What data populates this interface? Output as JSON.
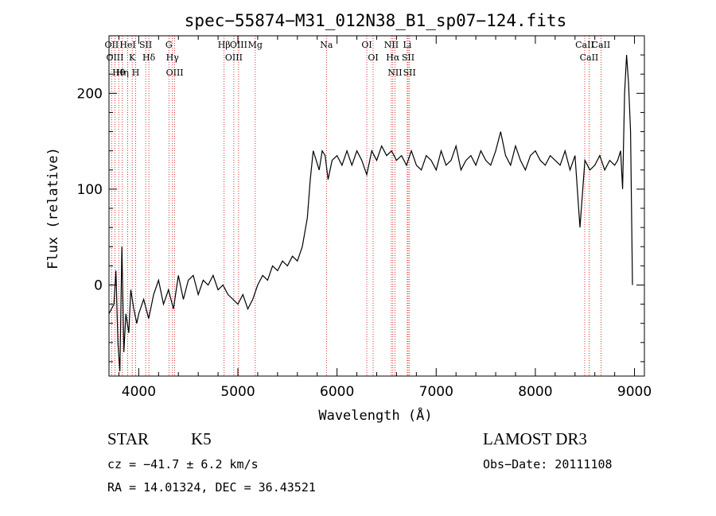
{
  "chart_data": {
    "type": "line",
    "title": "spec−55874−M31_012N38_B1_sp07−124.fits",
    "xlabel": "Wavelength (Å)",
    "ylabel": "Flux (relative)",
    "xlim": [
      3700,
      9100
    ],
    "ylim": [
      -95,
      260
    ],
    "x_ticks": [
      4000,
      5000,
      6000,
      7000,
      8000,
      9000
    ],
    "x_tick_labels": [
      "4000",
      "5000",
      "6000",
      "7000",
      "8000",
      "9000"
    ],
    "y_ticks": [
      0,
      100,
      200
    ],
    "y_tick_labels": [
      "0",
      "100",
      "200"
    ],
    "series": [
      {
        "name": "spectrum",
        "color": "#000000",
        "x": [
          3700,
          3750,
          3770,
          3790,
          3810,
          3830,
          3850,
          3870,
          3900,
          3920,
          3950,
          3980,
          4000,
          4050,
          4100,
          4150,
          4200,
          4250,
          4300,
          4350,
          4400,
          4450,
          4500,
          4550,
          4600,
          4650,
          4700,
          4750,
          4800,
          4850,
          4900,
          4950,
          5000,
          5050,
          5100,
          5150,
          5200,
          5250,
          5300,
          5350,
          5400,
          5450,
          5500,
          5550,
          5600,
          5650,
          5700,
          5730,
          5760,
          5790,
          5820,
          5850,
          5880,
          5910,
          5950,
          6000,
          6050,
          6100,
          6150,
          6200,
          6250,
          6300,
          6350,
          6400,
          6450,
          6500,
          6550,
          6600,
          6650,
          6700,
          6750,
          6800,
          6850,
          6900,
          6950,
          7000,
          7050,
          7100,
          7150,
          7200,
          7250,
          7300,
          7350,
          7400,
          7450,
          7500,
          7550,
          7600,
          7650,
          7700,
          7750,
          7800,
          7850,
          7900,
          7950,
          8000,
          8050,
          8100,
          8150,
          8200,
          8250,
          8300,
          8350,
          8400,
          8450,
          8500,
          8550,
          8600,
          8650,
          8700,
          8750,
          8800,
          8830,
          8860,
          8880,
          8900,
          8920,
          8940,
          8960,
          8980
        ],
        "y": [
          -30,
          -20,
          15,
          -60,
          -90,
          40,
          -70,
          -30,
          -50,
          -5,
          -25,
          -40,
          -30,
          -15,
          -35,
          -10,
          5,
          -20,
          -5,
          -25,
          10,
          -15,
          5,
          10,
          -10,
          5,
          0,
          10,
          -5,
          0,
          -10,
          -15,
          -20,
          -10,
          -25,
          -15,
          0,
          10,
          5,
          20,
          15,
          25,
          20,
          30,
          25,
          40,
          70,
          110,
          140,
          130,
          120,
          140,
          135,
          110,
          130,
          135,
          125,
          140,
          125,
          140,
          130,
          115,
          140,
          130,
          145,
          135,
          140,
          130,
          135,
          125,
          140,
          125,
          120,
          135,
          130,
          120,
          140,
          125,
          130,
          145,
          120,
          130,
          135,
          125,
          140,
          130,
          125,
          140,
          160,
          135,
          125,
          145,
          130,
          120,
          135,
          140,
          130,
          125,
          135,
          130,
          125,
          140,
          120,
          135,
          60,
          130,
          120,
          125,
          135,
          120,
          130,
          125,
          130,
          140,
          100,
          200,
          240,
          210,
          160,
          0
        ]
      }
    ],
    "lines": [
      {
        "label": "Hθ",
        "x": 3798
      },
      {
        "label": "OII",
        "x": 3727
      },
      {
        "label": "OIII",
        "x": 3760
      },
      {
        "label": "K",
        "x": 3934
      },
      {
        "label": "H",
        "x": 3969
      },
      {
        "label": "HeI",
        "x": 3889
      },
      {
        "label": "Hη",
        "x": 3835
      },
      {
        "label": "Hδ",
        "x": 4102
      },
      {
        "label": "SII",
        "x": 4070
      },
      {
        "label": "OIII",
        "x": 4363
      },
      {
        "label": "Hγ",
        "x": 4340
      },
      {
        "label": "G",
        "x": 4304
      },
      {
        "label": "Hβ",
        "x": 4861
      },
      {
        "label": "OIII",
        "x": 4959
      },
      {
        "label": "OIII",
        "x": 5007
      },
      {
        "label": "Mg",
        "x": 5175
      },
      {
        "label": "Na",
        "x": 5893
      },
      {
        "label": "OI",
        "x": 6300
      },
      {
        "label": "OI",
        "x": 6364
      },
      {
        "label": "Hα",
        "x": 6563
      },
      {
        "label": "NII",
        "x": 6548
      },
      {
        "label": "NII",
        "x": 6584
      },
      {
        "label": "SII",
        "x": 6717
      },
      {
        "label": "SII",
        "x": 6731
      },
      {
        "label": "Li",
        "x": 6708
      },
      {
        "label": "CaII",
        "x": 8498
      },
      {
        "label": "CaII",
        "x": 8542
      },
      {
        "label": "CaII",
        "x": 8662
      }
    ]
  },
  "info": {
    "class": "STAR",
    "subclass": "K5",
    "survey": "LAMOST DR3",
    "cz": "cz = −41.7 ± 6.2 km/s",
    "obs_date": "Obs−Date: 20111108",
    "radec": "RA =  14.01324, DEC =  36.43521"
  }
}
